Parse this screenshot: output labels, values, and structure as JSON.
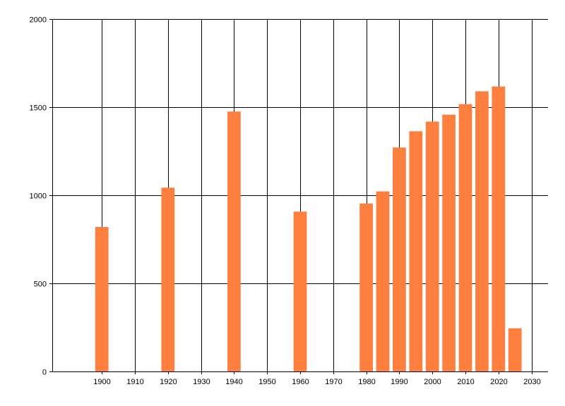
{
  "chart_data": {
    "type": "bar",
    "title": "",
    "xlabel": "",
    "ylabel": "",
    "x": [
      1900,
      1920,
      1940,
      1960,
      1980,
      1985,
      1990,
      1995,
      2000,
      2005,
      2010,
      2015,
      2020,
      2025
    ],
    "values": [
      820,
      1043,
      1475,
      907,
      953,
      1022,
      1271,
      1363,
      1418,
      1457,
      1517,
      1590,
      1617,
      245
    ],
    "xlim": [
      1885,
      2035
    ],
    "ylim": [
      0,
      2000
    ],
    "x_ticks": [
      "1900",
      "1910",
      "1920",
      "1930",
      "1940",
      "1950",
      "1960",
      "1970",
      "1980",
      "1990",
      "2000",
      "2010",
      "2020",
      "2030"
    ],
    "y_ticks": [
      "0",
      "500",
      "1000",
      "1500",
      "2000"
    ],
    "grid": true,
    "colors": {
      "bar": "#ff7f3f",
      "grid": "#000000",
      "text": "#000000"
    }
  }
}
